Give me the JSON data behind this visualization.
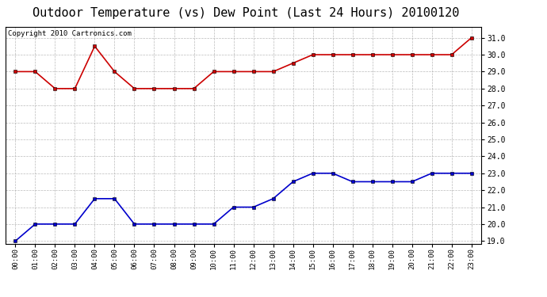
{
  "title": "Outdoor Temperature (vs) Dew Point (Last 24 Hours) 20100120",
  "copyright_text": "Copyright 2010 Cartronics.com",
  "hours": [
    "00:00",
    "01:00",
    "02:00",
    "03:00",
    "04:00",
    "05:00",
    "06:00",
    "07:00",
    "08:00",
    "09:00",
    "10:00",
    "11:00",
    "12:00",
    "13:00",
    "14:00",
    "15:00",
    "16:00",
    "17:00",
    "18:00",
    "19:00",
    "20:00",
    "21:00",
    "22:00",
    "23:00"
  ],
  "temp": [
    29.0,
    29.0,
    28.0,
    28.0,
    30.5,
    29.0,
    28.0,
    28.0,
    28.0,
    28.0,
    29.0,
    29.0,
    29.0,
    29.0,
    29.5,
    30.0,
    30.0,
    30.0,
    30.0,
    30.0,
    30.0,
    30.0,
    30.0,
    31.0
  ],
  "dew": [
    19.0,
    20.0,
    20.0,
    20.0,
    21.5,
    21.5,
    20.0,
    20.0,
    20.0,
    20.0,
    20.0,
    21.0,
    21.0,
    21.5,
    22.5,
    23.0,
    23.0,
    22.5,
    22.5,
    22.5,
    22.5,
    23.0,
    23.0,
    23.0
  ],
  "temp_color": "#cc0000",
  "dew_color": "#0000cc",
  "bg_color": "#ffffff",
  "grid_color": "#aaaaaa",
  "ylim_min": 18.85,
  "ylim_max": 31.65,
  "ytick_min": 19.0,
  "ytick_max": 31.0,
  "ytick_step": 1.0,
  "title_fontsize": 11,
  "copyright_fontsize": 6.5,
  "marker": "s",
  "marker_size": 3,
  "line_width": 1.2
}
